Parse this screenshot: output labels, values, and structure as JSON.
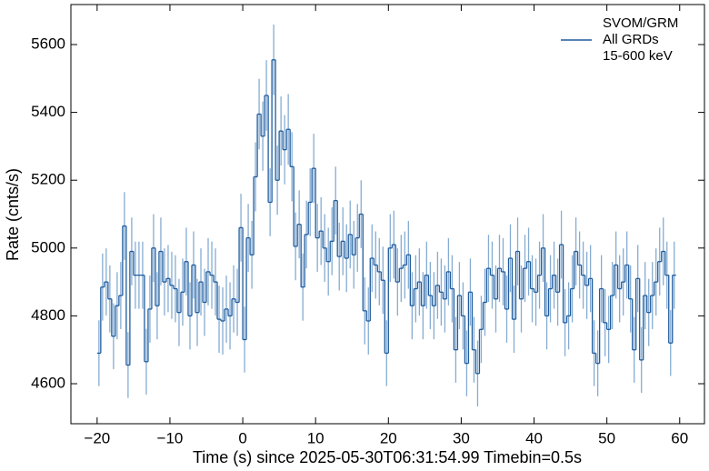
{
  "chart_data": {
    "type": "histogram",
    "xlabel": "Time (s) since 2025-05-30T06:31:54.99 Timebin=0.5s",
    "ylabel": "Rate (cnts/s)",
    "xlim": [
      -23.6,
      63.4
    ],
    "ylim": [
      4482,
      5718
    ],
    "xticks": [
      {
        "value": -20,
        "label": "−20"
      },
      {
        "value": -10,
        "label": "−10"
      },
      0,
      10,
      20,
      30,
      40,
      50,
      60
    ],
    "yticks": [
      4600,
      4800,
      5000,
      5200,
      5400,
      5600
    ],
    "legend": "upper right",
    "grid": false,
    "bins": [
      -20,
      -19.5,
      -19,
      -18.5,
      -18,
      -17.5,
      -17,
      -16.5,
      -16,
      -15.5,
      -15,
      -14.5,
      -14,
      -13.5,
      -13,
      -12.5,
      -12,
      -11.5,
      -11,
      -10.5,
      -10,
      -9.5,
      -9,
      -8.5,
      -8,
      -7.5,
      -7,
      -6.5,
      -6,
      -5.5,
      -5,
      -4.5,
      -4,
      -3.5,
      -3,
      -2.5,
      -2,
      -1.5,
      -1,
      -0.5,
      0,
      0.5,
      1,
      1.5,
      2,
      2.5,
      3,
      3.5,
      4,
      4.5,
      5,
      5.5,
      6,
      6.5,
      7,
      7.5,
      8,
      8.5,
      9,
      9.5,
      10,
      10.5,
      11,
      11.5,
      12,
      12.5,
      13,
      13.5,
      14,
      14.5,
      15,
      15.5,
      16,
      16.5,
      17,
      17.5,
      18,
      18.5,
      19,
      19.5,
      20,
      20.5,
      21,
      21.5,
      22,
      22.5,
      23,
      23.5,
      24,
      24.5,
      25,
      25.5,
      26,
      26.5,
      27,
      27.5,
      28,
      28.5,
      29,
      29.5,
      30,
      30.5,
      31,
      31.5,
      32,
      32.5,
      33,
      33.5,
      34,
      34.5,
      35,
      35.5,
      36,
      36.5,
      37,
      37.5,
      38,
      38.5,
      39,
      39.5,
      40,
      40.5,
      41,
      41.5,
      42,
      42.5,
      43,
      43.5,
      44,
      44.5,
      45,
      45.5,
      46,
      46.5,
      47,
      47.5,
      48,
      48.5,
      49,
      49.5,
      50,
      50.5,
      51,
      51.5,
      52,
      52.5,
      53,
      53.5,
      54,
      54.5,
      55,
      55.5,
      56,
      56.5,
      57,
      57.5,
      58,
      58.5,
      59,
      59.5
    ],
    "series": [
      {
        "name": [
          "SVOM/GRM",
          "All GRDs",
          "15-600 keV"
        ],
        "color": "#1f5c9e",
        "error_color": "#86acd2",
        "values": [
          4690,
          4885,
          4900,
          4850,
          4740,
          4830,
          4860,
          5065,
          4655,
          4990,
          4920,
          4920,
          4920,
          4665,
          4820,
          5000,
          4830,
          4990,
          4900,
          4910,
          4890,
          4880,
          4810,
          4870,
          4960,
          4800,
          4950,
          4810,
          4900,
          4840,
          4930,
          4920,
          4900,
          4790,
          4785,
          4820,
          4800,
          4850,
          4840,
          5060,
          4730,
          5030,
          4980,
          5210,
          5395,
          5330,
          5450,
          5135,
          5555,
          5200,
          5345,
          5290,
          5350,
          5240,
          5005,
          5070,
          4885,
          5040,
          5135,
          5235,
          5030,
          5050,
          5000,
          4960,
          5020,
          5140,
          4975,
          5020,
          4970,
          5040,
          4980,
          5030,
          5100,
          4815,
          4785,
          4970,
          4950,
          4930,
          4905,
          4690,
          5000,
          5010,
          4900,
          4940,
          4950,
          4980,
          4830,
          4880,
          4900,
          4830,
          4920,
          4860,
          4830,
          4890,
          4870,
          4850,
          4930,
          4880,
          4700,
          4860,
          4800,
          4660,
          4870,
          4700,
          4630,
          4760,
          4840,
          4940,
          4920,
          4850,
          4940,
          4930,
          4820,
          4970,
          4790,
          4990,
          4850,
          4940,
          4960,
          4880,
          4870,
          4920,
          5000,
          4800,
          4880,
          4920,
          4870,
          5010,
          4780,
          4800,
          4880,
          4990,
          4950,
          4920,
          4890,
          4910,
          4690,
          4660,
          4880,
          4780,
          4760,
          4860,
          4950,
          4880,
          4900,
          4950,
          4850,
          4700,
          4910,
          4670,
          4860,
          4810,
          4860,
          4900,
          4960,
          4990,
          4920,
          4720,
          4920
        ],
        "errors": [
          97,
          99,
          99,
          99,
          97,
          99,
          99,
          100,
          97,
          100,
          99,
          99,
          99,
          97,
          99,
          100,
          99,
          100,
          99,
          99,
          99,
          99,
          99,
          99,
          100,
          99,
          99,
          99,
          99,
          99,
          99,
          99,
          99,
          99,
          99,
          99,
          99,
          99,
          99,
          100,
          97,
          100,
          100,
          102,
          104,
          102,
          104,
          100,
          104,
          102,
          102,
          102,
          104,
          102,
          100,
          100,
          99,
          100,
          100,
          102,
          100,
          100,
          100,
          100,
          100,
          100,
          100,
          100,
          100,
          100,
          100,
          100,
          100,
          99,
          99,
          100,
          99,
          99,
          99,
          97,
          100,
          100,
          99,
          99,
          99,
          100,
          99,
          99,
          99,
          99,
          99,
          99,
          99,
          99,
          99,
          99,
          99,
          99,
          97,
          99,
          99,
          97,
          99,
          97,
          97,
          99,
          99,
          99,
          99,
          99,
          99,
          99,
          99,
          100,
          99,
          100,
          99,
          99,
          100,
          99,
          99,
          99,
          100,
          99,
          99,
          99,
          99,
          100,
          99,
          99,
          99,
          100,
          99,
          99,
          99,
          99,
          97,
          97,
          99,
          99,
          99,
          99,
          99,
          99,
          99,
          99,
          99,
          97,
          99,
          97,
          99,
          99,
          99,
          99,
          100,
          100,
          99,
          97,
          99
        ]
      }
    ]
  }
}
